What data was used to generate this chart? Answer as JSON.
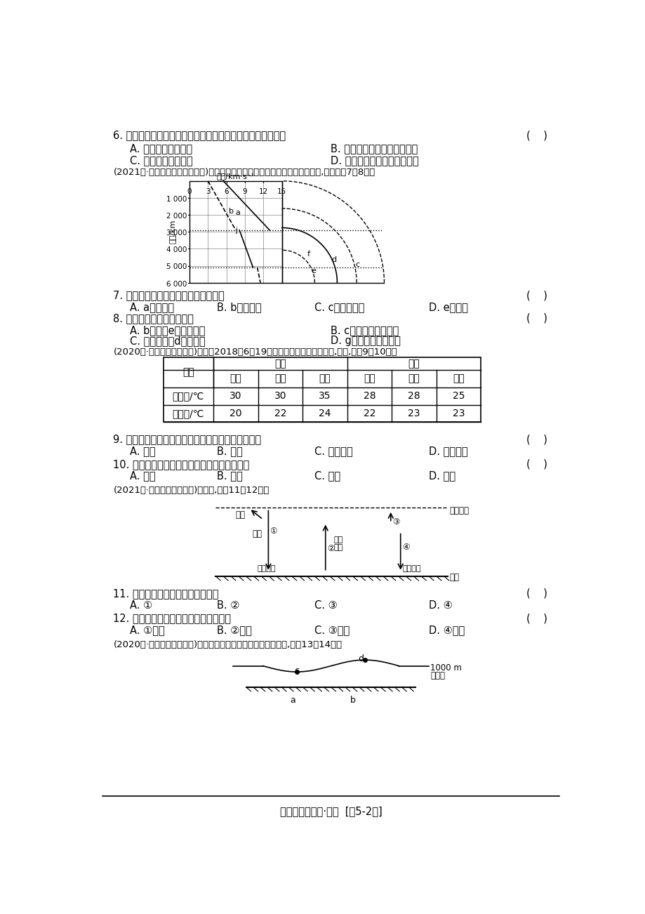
{
  "bg_color": "#f5f5f0",
  "page_width": 9.2,
  "page_height": 13.02,
  "font_family": "SimSun",
  "title_bottom": "综合过关检测卷·地理  [第5-2页]",
  "q6_text": "6. 照片中未被遥住的太阳外部圈层所产生的太阳活动可能导致",
  "q6_bracket": "(    )",
  "q6_A": "A. 流星现象异常增多",
  "q6_B": "B. 北方地区卫星通信受到干扰",
  "q6_C": "C. 全球降水异常增加",
  "q6_D": "D. 浙江境内夜空出现绹丽极光",
  "caption_78": "(2021屆·海安实验高中学测模考)下图为「地球内部地震波及内部圈层示意图」,读图完扐7～8题。",
  "seismic_xlabel": "速度/km·s⁻¹",
  "seismic_xticks": [
    "0",
    "3",
    "6",
    "9",
    "12",
    "15"
  ],
  "seismic_yticks": [
    "1 000",
    "2 000",
    "3 000",
    "4 000",
    "5 000",
    "6 000"
  ],
  "seismic_ylabel": "深度/km",
  "q7_text": "7. 图中字母与其所表示的含义正确的是",
  "q7_bracket": "(    )",
  "q7_A": "A. a表示纵波",
  "q7_B": "B. b表示横波",
  "q7_C": "C. c为莫霍界面",
  "q7_D": "D. e为外核",
  "q8_text": "8. 下列对图示分析正确的是",
  "q8_bracket": "(    )",
  "q8_A": "A. b波通过e界面时消失",
  "q8_B": "B. c界面以上为岩石圈",
  "q8_C": "C. 软流层位于d圈层上部",
  "q8_D": "D. g层物质呈溶融状态",
  "caption_910": "(2020屆·泰安一中高一期中)下表为2018年6月19日我国部分城市的气温资料,据此,完扐9～10题。",
  "table_row1": [
    "最高温/℃",
    "30",
    "30",
    "35",
    "28",
    "28",
    "25"
  ],
  "table_row2": [
    "最低温/℃",
    "20",
    "22",
    "24",
    "22",
    "23",
    "23"
  ],
  "q9_text": "9. 影响表中南、北方城市该日气温差异的主要因素是",
  "q9_bracket": "(    )",
  "q9_A": "A. 纬度",
  "q9_B": "B. 地形",
  "q9_C": "C. 气象条件",
  "q9_D": "D. 海陆位置",
  "q10_text": "10. 表中城市该日夜晚大气保温作用最明显的是",
  "q10_bracket": "(    )",
  "q10_A": "A. 北京",
  "q10_B": "B. 济南",
  "q10_C": "C. 上海",
  "q10_D": "D. 福州",
  "caption_1112": "(2021屆·江苏学测模考卷三)读下图,完戕11～12题。",
  "q11_text": "11. 图中序号表示大气直接热源的是",
  "q11_bracket": "(    )",
  "q11_A": "A. ①",
  "q11_B": "B. ②",
  "q11_C": "C. ③",
  "q11_D": "D. ④",
  "q12_text": "12. 我国冬季的「月夜苦寒」苦寒是因为",
  "q12_bracket": "(    )",
  "q12_A": "A. ①减弱",
  "q12_B": "B. ②增强",
  "q12_C": "C. ③减弱",
  "q12_D": "D. ④减弱",
  "caption_1314": "(2020屆·刘桥中学高一月考)读「北半球某地高空等压面分布图」,回儿13～14题。"
}
